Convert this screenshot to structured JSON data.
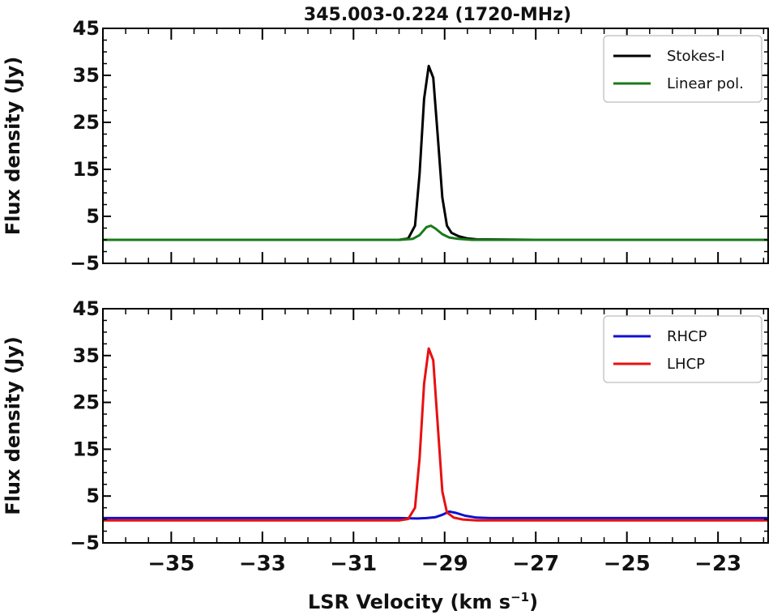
{
  "chart_data": {
    "type": "line",
    "title": "345.003-0.224 (1720-MHz)",
    "xlabel": "LSR Velocity (km s",
    "xlabel_sup": "−1",
    "xlabel_tail": ")",
    "xlim": [
      -36.5,
      -21.9
    ],
    "x_ticks": [
      -35,
      -33,
      -31,
      -29,
      -27,
      -25,
      -23
    ],
    "x_tick_labels": [
      "−35",
      "−33",
      "−31",
      "−29",
      "−27",
      "−25",
      "−23"
    ],
    "x_minor_step": 0.5,
    "panels": [
      {
        "ylabel": "Flux density (Jy)",
        "ylim": [
          -5,
          45
        ],
        "y_ticks": [
          -5,
          5,
          15,
          25,
          35,
          45
        ],
        "y_tick_labels": [
          "−5",
          "5",
          "15",
          "25",
          "35",
          "45"
        ],
        "legend_position": "top-right",
        "series": [
          {
            "name": "Stokes-I",
            "color": "#000000",
            "x": [
              -36.5,
              -34.5,
              -32.0,
              -30.0,
              -29.8,
              -29.65,
              -29.55,
              -29.45,
              -29.35,
              -29.25,
              -29.15,
              -29.05,
              -28.95,
              -28.85,
              -28.7,
              -28.5,
              -28.3,
              -27.0,
              -21.9
            ],
            "y": [
              0.0,
              0.0,
              0.0,
              0.0,
              0.3,
              3.0,
              14.0,
              30.0,
              37.0,
              34.5,
              22.0,
              9.0,
              3.0,
              1.5,
              0.8,
              0.3,
              0.1,
              0.0,
              0.0
            ]
          },
          {
            "name": "Linear pol.",
            "color": "#1a7a1a",
            "x": [
              -36.5,
              -30.0,
              -29.7,
              -29.55,
              -29.4,
              -29.3,
              -29.2,
              -29.05,
              -28.9,
              -28.7,
              -28.4,
              -21.9
            ],
            "y": [
              0.0,
              0.0,
              0.2,
              1.0,
              2.7,
              3.0,
              2.4,
              1.2,
              0.5,
              0.2,
              0.0,
              0.0
            ]
          }
        ]
      },
      {
        "ylabel": "Flux density (Jy)",
        "ylim": [
          -5,
          45
        ],
        "y_ticks": [
          -5,
          5,
          15,
          25,
          35,
          45
        ],
        "y_tick_labels": [
          "−5",
          "5",
          "15",
          "25",
          "35",
          "45"
        ],
        "legend_position": "top-right",
        "series": [
          {
            "name": "RHCP",
            "color": "#1010d0",
            "x": [
              -36.5,
              -30.0,
              -29.6,
              -29.4,
              -29.2,
              -29.05,
              -28.9,
              -28.75,
              -28.55,
              -28.3,
              -28.0,
              -21.9
            ],
            "y": [
              0.3,
              0.3,
              0.2,
              0.3,
              0.5,
              1.0,
              1.7,
              1.4,
              0.8,
              0.4,
              0.3,
              0.3
            ]
          },
          {
            "name": "LHCP",
            "color": "#e81010",
            "x": [
              -36.5,
              -30.0,
              -29.8,
              -29.65,
              -29.55,
              -29.45,
              -29.35,
              -29.25,
              -29.15,
              -29.05,
              -28.95,
              -28.8,
              -28.6,
              -28.3,
              -21.9
            ],
            "y": [
              -0.2,
              -0.2,
              0.1,
              2.5,
              13.0,
              29.0,
              36.5,
              34.0,
              20.0,
              6.0,
              1.5,
              0.4,
              0.0,
              -0.2,
              -0.2
            ]
          }
        ]
      }
    ]
  }
}
